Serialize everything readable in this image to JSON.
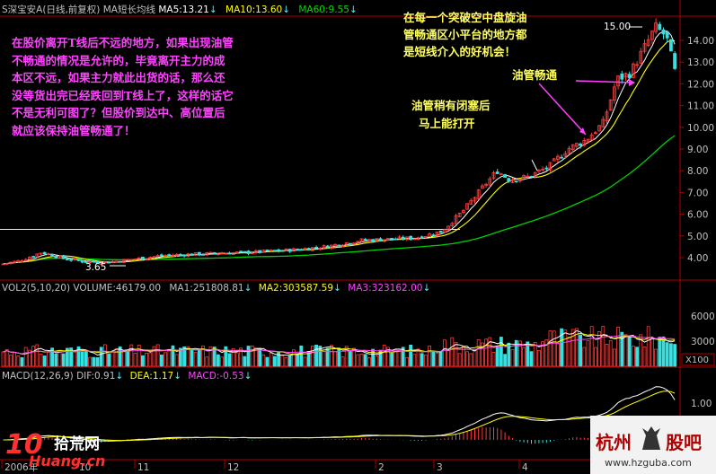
{
  "colors": {
    "bg": "#000000",
    "axis": "#b00000",
    "up": "#ff3b3b",
    "down": "#34e0e0",
    "ma5": "#ffffff",
    "ma10": "#ffff00",
    "ma60": "#00d000",
    "note": "#ff44ff",
    "note2": "#ffff60",
    "purple": "#ff40ff"
  },
  "main": {
    "title": "S深宝安A(日线,前复权)",
    "ma_label": "MA短长均线",
    "ma5": "MA5:13.21",
    "ma10": "MA10:13.60",
    "ma60": "MA60:9.55",
    "arrow": "↓"
  },
  "vol": {
    "label": "VOL2(5,10,20)",
    "volume": "VOLUME:46179.00",
    "ma1": "MA1:251808.81",
    "ma2": "MA2:303587.59",
    "ma3": "MA3:323162.00",
    "arrow": "↓",
    "scale": "X100"
  },
  "macd": {
    "label": "MACD(12,26,9)",
    "dif": "DIF:0.91",
    "dea": "DEA:1.17",
    "macd": "MACD:-0.53",
    "arrow": "↓"
  },
  "annotations": {
    "left": [
      "在股价离开T线后不远的地方，如果出现油管",
      "不畅通的情况是允许的，毕竟离开主力的成",
      "本区不远，如果主力就此出货的话，那么还",
      "没等货出完已经跌回到T线上了，这样的话它",
      "不是无利可图了？但股价到达中、高位置后",
      "就应该保持油管畅通了！"
    ],
    "mid": [
      "油管稍有闭塞后",
      "马上能打开"
    ],
    "top": [
      "在每一个突破空中盘旋油",
      "管畅通区小平台的地方都",
      "是短线介入的好机会！"
    ],
    "right": "油管畅通",
    "low": "3.65",
    "high": "15.00"
  },
  "watermark": {
    "left_top": "10",
    "left_name": "拾荒网",
    "left_sub": "Huang.cn",
    "right_name": "杭州",
    "right_name2": "股吧",
    "right_url": "www.hzguba.com"
  },
  "chart_data": [
    {
      "type": "candlestick",
      "title": "S深宝安A(日线,前复权)",
      "ylim": [
        3.4,
        15.2
      ],
      "y_ticks": [
        4.0,
        5.0,
        6.0,
        7.0,
        8.0,
        9.0,
        10.0,
        11.0,
        12.0,
        13.0,
        14.0
      ],
      "x_ticks": [
        "2006年",
        "10",
        "11",
        "12",
        "2",
        "3",
        "4"
      ],
      "price_path": [
        [
          0,
          3.7
        ],
        [
          20,
          3.85
        ],
        [
          45,
          4.25
        ],
        [
          70,
          3.95
        ],
        [
          95,
          3.8
        ],
        [
          120,
          3.8
        ],
        [
          150,
          3.95
        ],
        [
          180,
          4.1
        ],
        [
          210,
          4.15
        ],
        [
          240,
          4.2
        ],
        [
          280,
          4.25
        ],
        [
          320,
          4.35
        ],
        [
          360,
          4.5
        ],
        [
          400,
          4.8
        ],
        [
          430,
          4.85
        ],
        [
          460,
          4.9
        ],
        [
          490,
          5.2
        ],
        [
          515,
          6.2
        ],
        [
          535,
          7.2
        ],
        [
          552,
          8.0
        ],
        [
          565,
          7.6
        ],
        [
          585,
          7.7
        ],
        [
          610,
          8.2
        ],
        [
          630,
          9.0
        ],
        [
          650,
          9.4
        ],
        [
          670,
          10.2
        ],
        [
          685,
          12.2
        ],
        [
          700,
          12.5
        ],
        [
          715,
          13.6
        ],
        [
          728,
          14.6
        ],
        [
          740,
          14.2
        ],
        [
          750,
          12.5
        ]
      ],
      "extremes": {
        "low": 3.65,
        "high": 15.0
      },
      "series": [
        {
          "name": "MA5",
          "last": 13.21
        },
        {
          "name": "MA10",
          "last": 13.6
        },
        {
          "name": "MA60",
          "last": 9.55
        }
      ],
      "t_line": 5.3
    },
    {
      "type": "bar",
      "title": "VOL2(5,10,20)",
      "y_ticks": [
        3000,
        6000
      ],
      "unit": "X100",
      "series": [
        {
          "name": "VOLUME",
          "last": 46179.0
        },
        {
          "name": "MA1",
          "last": 251808.81
        },
        {
          "name": "MA2",
          "last": 303587.59
        },
        {
          "name": "MA3",
          "last": 323162.0
        }
      ]
    },
    {
      "type": "line",
      "title": "MACD(12,26,9)",
      "y_ticks": [
        1.0
      ],
      "series": [
        {
          "name": "DIF",
          "last": 0.91
        },
        {
          "name": "DEA",
          "last": 1.17
        },
        {
          "name": "MACD",
          "last": -0.53
        }
      ]
    }
  ]
}
